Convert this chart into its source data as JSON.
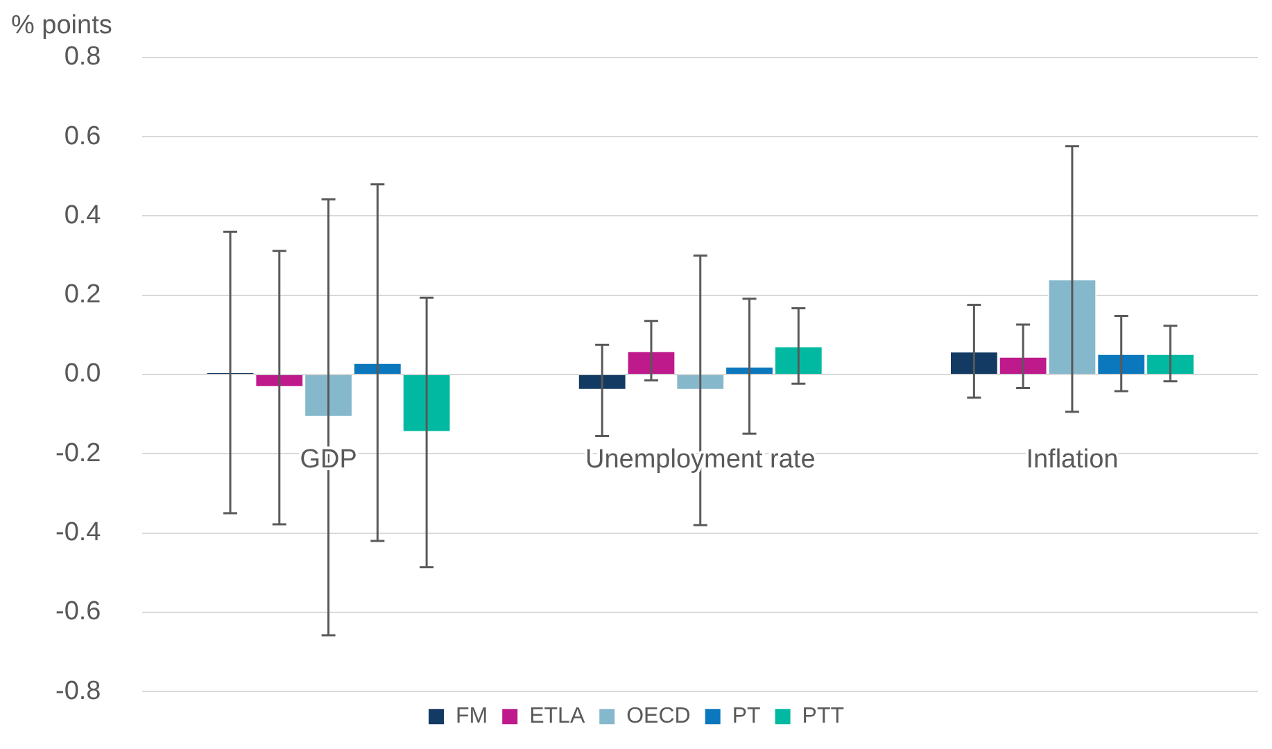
{
  "chart_data": {
    "type": "bar",
    "ylabel": "% points",
    "categories": [
      "GDP",
      "Unemployment rate",
      "Inflation"
    ],
    "series": [
      {
        "name": "FM",
        "color": "#123a63",
        "values": [
          0.005,
          -0.04,
          0.059
        ],
        "errors": [
          0.355,
          0.115,
          0.117
        ]
      },
      {
        "name": "ETLA",
        "color": "#be1a8c",
        "values": [
          -0.033,
          0.06,
          0.046
        ],
        "errors": [
          0.345,
          0.075,
          0.08
        ]
      },
      {
        "name": "OECD",
        "color": "#86b8cb",
        "values": [
          -0.108,
          -0.04,
          0.241
        ],
        "errors": [
          0.55,
          0.34,
          0.335
        ]
      },
      {
        "name": "PT",
        "color": "#0b77bd",
        "values": [
          0.03,
          0.021,
          0.053
        ],
        "errors": [
          0.45,
          0.17,
          0.095
        ]
      },
      {
        "name": "PTT",
        "color": "#00b9a0",
        "values": [
          -0.146,
          0.072,
          0.053
        ],
        "errors": [
          0.34,
          0.095,
          0.07
        ]
      }
    ],
    "ylim": [
      -0.8,
      0.8
    ],
    "yticks": [
      -0.8,
      -0.6,
      -0.4,
      -0.2,
      {
        "value": 0,
        "label": "0.0"
      },
      0.2,
      0.4,
      0.6,
      0.8
    ],
    "grid": "y",
    "legend": "bottom"
  }
}
